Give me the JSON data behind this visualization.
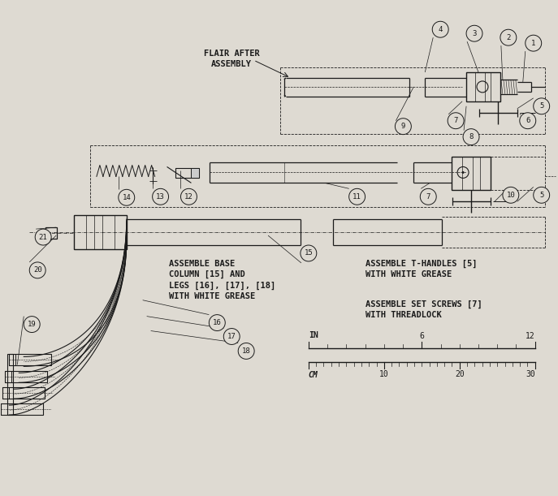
{
  "bg_color": "#dedad2",
  "line_color": "#1a1a1a",
  "figsize": [
    6.87,
    6.11
  ],
  "dpi": 100,
  "annotations": {
    "flair_after_assembly": "FLAIR AFTER\nASSEMBLY",
    "assemble_base": "ASSEMBLE BASE\nCOLUMN [15] AND\nLEGS [16], [17], [18]\nWITH WHITE GREASE",
    "assemble_t_handles": "ASSEMBLE T-HANDLES [5]\nWITH WHITE GREASE",
    "assemble_set_screws": "ASSEMBLE SET SCREWS [7]\nWITH THREADLOCK"
  }
}
